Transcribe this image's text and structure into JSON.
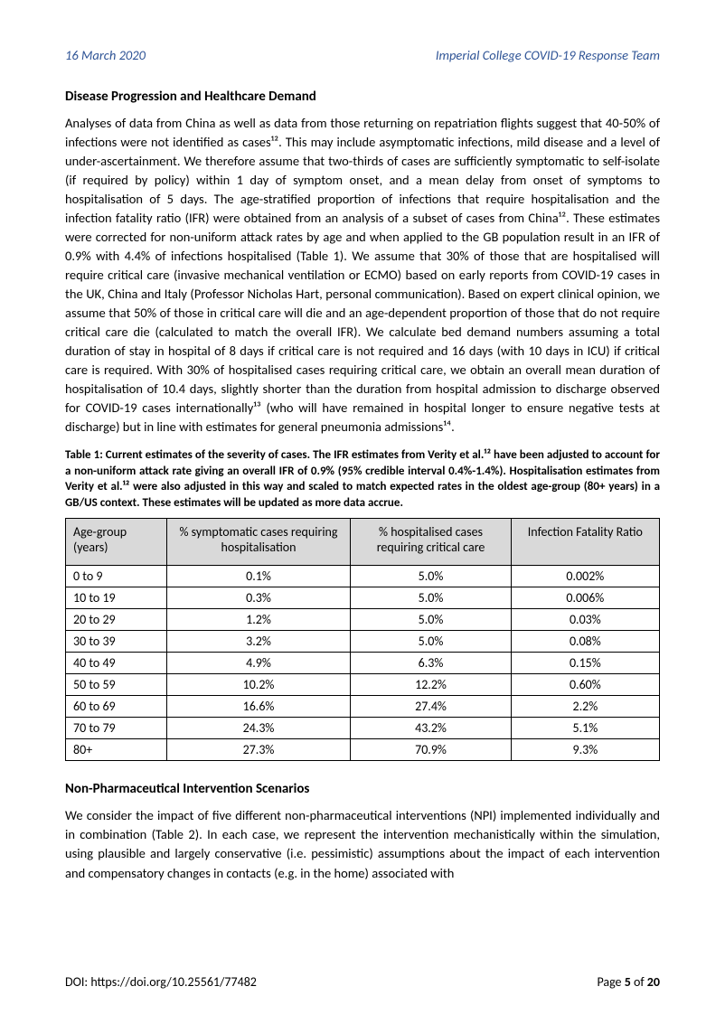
{
  "header": {
    "date": "16 March 2020",
    "team": "Imperial College COVID-19 Response Team"
  },
  "section1": {
    "heading": "Disease Progression and Healthcare Demand",
    "para": "Analyses of data from China as well as data from those returning on repatriation flights suggest that 40-50% of infections were not identified as cases¹². This may include asymptomatic infections, mild disease and a level of under-ascertainment. We therefore assume that two-thirds of cases are sufficiently symptomatic to self-isolate (if required by policy) within 1 day of symptom onset, and a mean delay from onset of symptoms to hospitalisation of 5 days. The age-stratified proportion of infections that require hospitalisation and the infection fatality ratio (IFR) were obtained from an analysis of a subset of cases from China¹². These estimates were corrected for non-uniform attack rates by age and when applied to the GB population result in an IFR of 0.9% with 4.4% of infections hospitalised (Table 1). We assume that 30% of those that are hospitalised will require critical care (invasive mechanical ventilation or ECMO) based on early reports from COVID-19 cases in the UK, China and Italy (Professor Nicholas Hart, personal communication). Based on expert clinical opinion, we assume that 50% of those in critical care will die and an age-dependent proportion of those that do not require critical care die (calculated to match the overall IFR). We calculate bed demand numbers assuming a total duration of stay in hospital of 8 days if critical care is not required and 16 days (with 10 days in ICU) if critical care is required. With 30% of hospitalised cases requiring critical care, we obtain an overall mean duration of hospitalisation of 10.4 days, slightly shorter than the duration from hospital admission to discharge observed for COVID-19 cases internationally¹³ (who will have remained in hospital longer to ensure negative tests at discharge) but in line with estimates for general pneumonia admissions¹⁴."
  },
  "table1": {
    "caption": "Table 1: Current estimates of the severity of cases. The IFR estimates from Verity et al.¹² have been adjusted to account for a non-uniform attack rate giving an overall IFR of 0.9% (95% credible interval 0.4%-1.4%). Hospitalisation estimates from Verity et al.¹² were also adjusted in this way and scaled to match expected rates in the oldest age-group (80+ years) in a GB/US context. These estimates will be updated as more data accrue.",
    "columns": [
      "Age-group (years)",
      "% symptomatic cases requiring hospitalisation",
      "% hospitalised cases requiring critical care",
      "Infection Fatality Ratio"
    ],
    "col_widths": [
      "17%",
      "31%",
      "27%",
      "25%"
    ],
    "rows": [
      [
        "0 to 9",
        "0.1%",
        "5.0%",
        "0.002%"
      ],
      [
        "10 to 19",
        "0.3%",
        "5.0%",
        "0.006%"
      ],
      [
        "20 to 29",
        "1.2%",
        "5.0%",
        "0.03%"
      ],
      [
        "30 to 39",
        "3.2%",
        "5.0%",
        "0.08%"
      ],
      [
        "40 to 49",
        "4.9%",
        "6.3%",
        "0.15%"
      ],
      [
        "50 to 59",
        "10.2%",
        "12.2%",
        "0.60%"
      ],
      [
        "60 to 69",
        "16.6%",
        "27.4%",
        "2.2%"
      ],
      [
        "70 to 79",
        "24.3%",
        "43.2%",
        "5.1%"
      ],
      [
        "80+",
        "27.3%",
        "70.9%",
        "9.3%"
      ]
    ],
    "header_bg": "#d9d9d9",
    "border_color": "#000000"
  },
  "section2": {
    "heading": "Non-Pharmaceutical Intervention Scenarios",
    "para": "We consider the impact of five different non-pharmaceutical interventions (NPI) implemented individually and in combination (Table 2). In each case, we represent the intervention mechanistically within the simulation, using plausible and largely conservative (i.e. pessimistic) assumptions about the impact of each intervention and compensatory changes in contacts (e.g. in the home) associated with"
  },
  "footer": {
    "doi_label": "DOI: https://doi.org/10.25561/77482",
    "page_prefix": "Page ",
    "page_num": "5",
    "page_of": " of ",
    "page_total": "20"
  },
  "colors": {
    "header_text": "#2f5496",
    "body_text": "#000000",
    "background": "#ffffff"
  }
}
